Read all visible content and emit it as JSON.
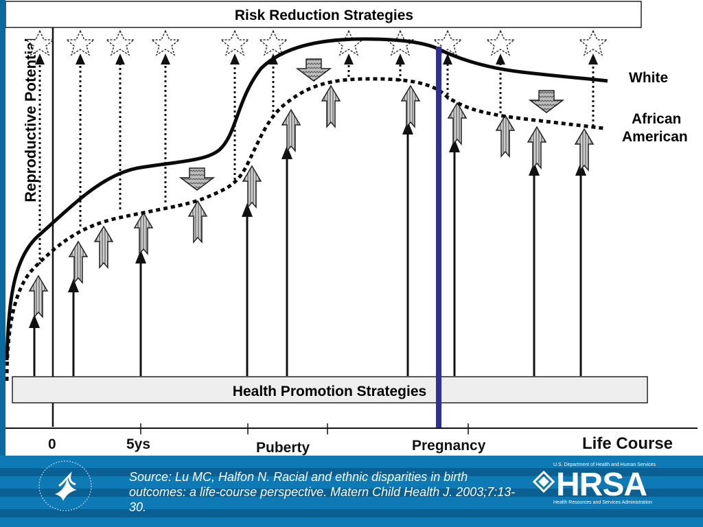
{
  "diagram": {
    "top_box": "Risk Reduction Strategies",
    "bottom_box": "Health Promotion Strategies",
    "y_axis_label": "Reproductive Potential",
    "legend": {
      "white": "White",
      "african_american_1": "African",
      "african_american_2": "American"
    },
    "x_ticks": [
      "0",
      "5ys",
      "Puberty",
      "Pregnancy",
      "Life Course"
    ]
  },
  "footer": {
    "source_text": "Source: Lu MC, Halfon N. Racial and ethnic disparities in birth outcomes: a life-course perspective. Matern Child Health J. 2003;7:13-30.",
    "hrsa_header": "U.S. Department of Health and Human Services",
    "hrsa_name": "HRSA",
    "hrsa_sub": "Health Resources and Services Administration"
  },
  "colors": {
    "background": "#0a6aa0",
    "pregnancy_marker": "#2f2f9a"
  }
}
